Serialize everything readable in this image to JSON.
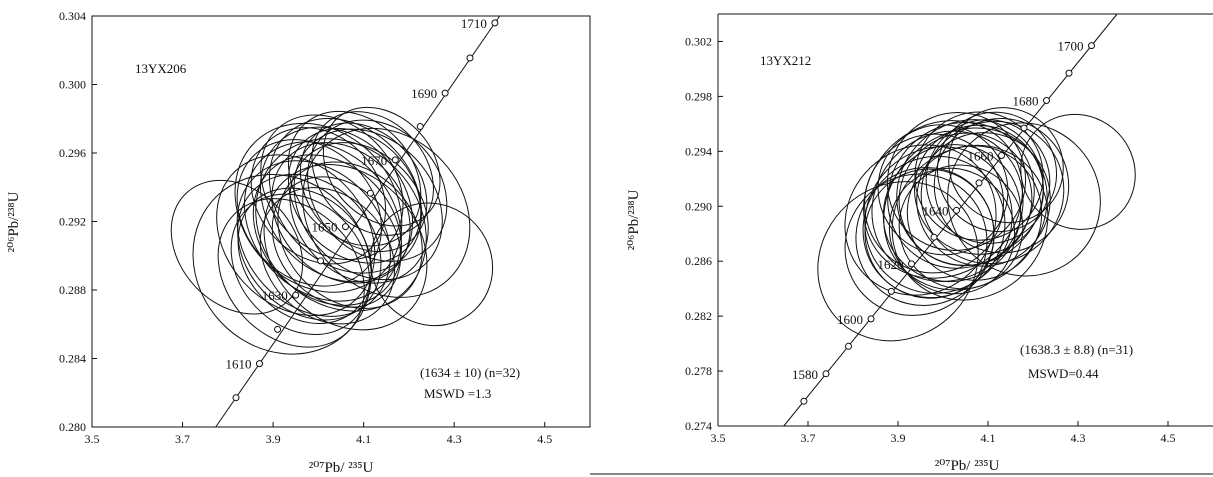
{
  "chart_data": [
    {
      "type": "scatter",
      "sample": "13YX206",
      "xlabel": "²⁰⁷Pb/ ²³⁵U",
      "ylabel": "²⁰⁶Pb/²³⁸U",
      "xlim": [
        3.5,
        4.6
      ],
      "ylim": [
        0.28,
        0.304
      ],
      "xticks": [
        "3.5",
        "3.7",
        "3.9",
        "4.1",
        "4.3",
        "4.5"
      ],
      "yticks": [
        "0.280",
        "0.284",
        "0.288",
        "0.292",
        "0.296",
        "0.300",
        "0.304"
      ],
      "concordia_labels": [
        {
          "text": "1610",
          "x": 3.87,
          "y": 0.2837
        },
        {
          "text": "1630",
          "x": 3.95,
          "y": 0.2877
        },
        {
          "text": "1650",
          "x": 4.06,
          "y": 0.2917
        },
        {
          "text": "1670",
          "x": 4.17,
          "y": 0.2956
        },
        {
          "text": "1690",
          "x": 4.28,
          "y": 0.2995
        },
        {
          "text": "1710",
          "x": 4.39,
          "y": 0.3036
        }
      ],
      "result": "(1634 ± 10) (n=32)",
      "mswd": "MSWD =1.3",
      "ellipses": [
        {
          "x": 4.02,
          "y": 0.2915,
          "rx": 0.23,
          "ry": 0.0062
        },
        {
          "x": 4.05,
          "y": 0.2925,
          "rx": 0.21,
          "ry": 0.0058
        },
        {
          "x": 3.98,
          "y": 0.2905,
          "rx": 0.22,
          "ry": 0.006
        },
        {
          "x": 4.08,
          "y": 0.2935,
          "rx": 0.2,
          "ry": 0.0055
        },
        {
          "x": 4.01,
          "y": 0.292,
          "rx": 0.25,
          "ry": 0.0065
        },
        {
          "x": 4.1,
          "y": 0.294,
          "rx": 0.19,
          "ry": 0.0052
        },
        {
          "x": 3.96,
          "y": 0.2895,
          "rx": 0.21,
          "ry": 0.0058
        },
        {
          "x": 4.04,
          "y": 0.293,
          "rx": 0.24,
          "ry": 0.0063
        },
        {
          "x": 4.07,
          "y": 0.2912,
          "rx": 0.22,
          "ry": 0.0061
        },
        {
          "x": 4.0,
          "y": 0.2935,
          "rx": 0.2,
          "ry": 0.0057
        },
        {
          "x": 4.12,
          "y": 0.2948,
          "rx": 0.18,
          "ry": 0.005
        },
        {
          "x": 3.94,
          "y": 0.289,
          "rx": 0.23,
          "ry": 0.006
        },
        {
          "x": 4.06,
          "y": 0.2905,
          "rx": 0.26,
          "ry": 0.0068
        },
        {
          "x": 4.03,
          "y": 0.294,
          "rx": 0.22,
          "ry": 0.0059
        },
        {
          "x": 3.99,
          "y": 0.291,
          "rx": 0.24,
          "ry": 0.0064
        },
        {
          "x": 4.09,
          "y": 0.2925,
          "rx": 0.21,
          "ry": 0.0058
        },
        {
          "x": 4.14,
          "y": 0.2952,
          "rx": 0.17,
          "ry": 0.0048
        },
        {
          "x": 3.97,
          "y": 0.29,
          "rx": 0.2,
          "ry": 0.0056
        },
        {
          "x": 4.05,
          "y": 0.2918,
          "rx": 0.28,
          "ry": 0.007
        },
        {
          "x": 4.02,
          "y": 0.29,
          "rx": 0.2,
          "ry": 0.0057
        },
        {
          "x": 4.11,
          "y": 0.293,
          "rx": 0.23,
          "ry": 0.0062
        },
        {
          "x": 3.95,
          "y": 0.2912,
          "rx": 0.25,
          "ry": 0.0066
        },
        {
          "x": 4.08,
          "y": 0.2945,
          "rx": 0.2,
          "ry": 0.0055
        },
        {
          "x": 4.0,
          "y": 0.2928,
          "rx": 0.27,
          "ry": 0.0069
        },
        {
          "x": 4.04,
          "y": 0.2908,
          "rx": 0.19,
          "ry": 0.0054
        },
        {
          "x": 4.13,
          "y": 0.2938,
          "rx": 0.21,
          "ry": 0.0059
        },
        {
          "x": 3.98,
          "y": 0.2925,
          "rx": 0.22,
          "ry": 0.0061
        },
        {
          "x": 4.06,
          "y": 0.2935,
          "rx": 0.24,
          "ry": 0.0063
        },
        {
          "x": 4.15,
          "y": 0.2925,
          "rx": 0.26,
          "ry": 0.0072
        },
        {
          "x": 3.92,
          "y": 0.2895,
          "rx": 0.3,
          "ry": 0.0072
        },
        {
          "x": 3.82,
          "y": 0.2905,
          "rx": 0.2,
          "ry": 0.0054
        },
        {
          "x": 4.25,
          "y": 0.2895,
          "rx": 0.16,
          "ry": 0.0056
        }
      ]
    },
    {
      "type": "scatter",
      "sample": "13YX212",
      "xlabel": "²⁰⁷Pb/ ²³⁵U",
      "ylabel": "²⁰⁶Pb/²³⁸U",
      "xlim": [
        3.5,
        4.6
      ],
      "ylim": [
        0.274,
        0.304
      ],
      "xticks": [
        "3.5",
        "3.7",
        "3.9",
        "4.1",
        "4.3",
        "4.5"
      ],
      "yticks": [
        "0.274",
        "0.278",
        "0.282",
        "0.286",
        "0.290",
        "0.294",
        "0.298",
        "0.302"
      ],
      "concordia_labels": [
        {
          "text": "1580",
          "x": 3.74,
          "y": 0.2778
        },
        {
          "text": "1600",
          "x": 3.84,
          "y": 0.2818
        },
        {
          "text": "1620",
          "x": 3.93,
          "y": 0.2858
        },
        {
          "text": "1640",
          "x": 4.03,
          "y": 0.2897
        },
        {
          "text": "1660",
          "x": 4.13,
          "y": 0.2937
        },
        {
          "text": "1680",
          "x": 4.23,
          "y": 0.2977
        },
        {
          "text": "1700",
          "x": 4.33,
          "y": 0.3017
        }
      ],
      "result": "(1638.3 ± 8.8) (n=31)",
      "mswd": "MSWD=0.44",
      "ellipses": [
        {
          "x": 4.02,
          "y": 0.2895,
          "rx": 0.25,
          "ry": 0.0058
        },
        {
          "x": 4.05,
          "y": 0.2905,
          "rx": 0.24,
          "ry": 0.0056
        },
        {
          "x": 3.98,
          "y": 0.2885,
          "rx": 0.26,
          "ry": 0.006
        },
        {
          "x": 4.08,
          "y": 0.2912,
          "rx": 0.23,
          "ry": 0.0055
        },
        {
          "x": 4.01,
          "y": 0.29,
          "rx": 0.28,
          "ry": 0.0064
        },
        {
          "x": 4.1,
          "y": 0.2918,
          "rx": 0.22,
          "ry": 0.0052
        },
        {
          "x": 3.96,
          "y": 0.2878,
          "rx": 0.25,
          "ry": 0.0059
        },
        {
          "x": 4.04,
          "y": 0.2908,
          "rx": 0.27,
          "ry": 0.0062
        },
        {
          "x": 4.07,
          "y": 0.2895,
          "rx": 0.24,
          "ry": 0.0058
        },
        {
          "x": 4.0,
          "y": 0.2912,
          "rx": 0.23,
          "ry": 0.0056
        },
        {
          "x": 4.12,
          "y": 0.2925,
          "rx": 0.21,
          "ry": 0.005
        },
        {
          "x": 3.94,
          "y": 0.2872,
          "rx": 0.26,
          "ry": 0.006
        },
        {
          "x": 4.06,
          "y": 0.2888,
          "rx": 0.29,
          "ry": 0.0066
        },
        {
          "x": 4.03,
          "y": 0.2918,
          "rx": 0.25,
          "ry": 0.0059
        },
        {
          "x": 3.99,
          "y": 0.289,
          "rx": 0.27,
          "ry": 0.0063
        },
        {
          "x": 4.09,
          "y": 0.2905,
          "rx": 0.24,
          "ry": 0.0057
        },
        {
          "x": 4.14,
          "y": 0.293,
          "rx": 0.2,
          "ry": 0.0048
        },
        {
          "x": 3.97,
          "y": 0.288,
          "rx": 0.23,
          "ry": 0.0055
        },
        {
          "x": 4.05,
          "y": 0.2898,
          "rx": 0.31,
          "ry": 0.0068
        },
        {
          "x": 4.02,
          "y": 0.2882,
          "rx": 0.22,
          "ry": 0.0054
        },
        {
          "x": 4.11,
          "y": 0.291,
          "rx": 0.26,
          "ry": 0.0061
        },
        {
          "x": 3.95,
          "y": 0.289,
          "rx": 0.28,
          "ry": 0.0064
        },
        {
          "x": 4.08,
          "y": 0.2922,
          "rx": 0.23,
          "ry": 0.0054
        },
        {
          "x": 4.0,
          "y": 0.2905,
          "rx": 0.3,
          "ry": 0.0066
        },
        {
          "x": 4.04,
          "y": 0.2885,
          "rx": 0.22,
          "ry": 0.0052
        },
        {
          "x": 4.13,
          "y": 0.2915,
          "rx": 0.24,
          "ry": 0.0058
        },
        {
          "x": 3.98,
          "y": 0.2902,
          "rx": 0.25,
          "ry": 0.006
        },
        {
          "x": 4.06,
          "y": 0.291,
          "rx": 0.27,
          "ry": 0.0062
        },
        {
          "x": 4.18,
          "y": 0.2905,
          "rx": 0.27,
          "ry": 0.007
        },
        {
          "x": 3.9,
          "y": 0.286,
          "rx": 0.3,
          "ry": 0.0068
        },
        {
          "x": 4.3,
          "y": 0.2925,
          "rx": 0.2,
          "ry": 0.0048
        }
      ]
    }
  ]
}
